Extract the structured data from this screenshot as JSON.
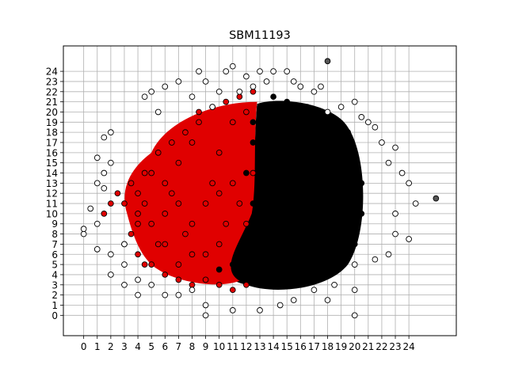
{
  "chart_data": {
    "type": "scatter",
    "title": "SBM11193",
    "xlabel": "",
    "ylabel": "",
    "xlim": [
      -1.5,
      27.5
    ],
    "ylim": [
      -2.0,
      26.5
    ],
    "x_ticks": [
      "0",
      "1",
      "2",
      "3",
      "4",
      "5",
      "6",
      "7",
      "8",
      "9",
      "10",
      "11",
      "12",
      "13",
      "14",
      "15",
      "16",
      "17",
      "18",
      "19",
      "20",
      "21",
      "22",
      "23",
      "24"
    ],
    "y_ticks": [
      "0",
      "1",
      "2",
      "3",
      "4",
      "5",
      "6",
      "7",
      "8",
      "9",
      "10",
      "11",
      "12",
      "13",
      "14",
      "15",
      "16",
      "17",
      "18",
      "19",
      "20",
      "21",
      "22",
      "23",
      "24"
    ],
    "grid": true,
    "legend": "none",
    "colors": {
      "black": "#000000",
      "red": "#e00000",
      "white": "#ffffff",
      "gray": "#555555",
      "marker_edge": "#000000"
    },
    "series": [
      {
        "color": "black",
        "description_only": false,
        "points": [
          [
            14.5,
            15.5
          ],
          [
            15.5,
            14.5
          ],
          [
            16.5,
            13.5
          ],
          [
            17.5,
            12.5
          ],
          [
            15,
            10
          ],
          [
            16,
            9
          ],
          [
            17,
            8
          ],
          [
            18,
            7
          ],
          [
            14,
            6
          ],
          [
            15,
            5
          ],
          [
            16,
            4
          ],
          [
            17,
            3.5
          ],
          [
            13.5,
            13
          ],
          [
            14.5,
            12
          ],
          [
            15.5,
            11
          ],
          [
            16.5,
            10.5
          ],
          [
            17.5,
            9.5
          ],
          [
            18.5,
            8.5
          ],
          [
            19,
            12
          ],
          [
            19.5,
            15
          ],
          [
            18.5,
            16.5
          ],
          [
            17.5,
            17.5
          ],
          [
            16.5,
            18.5
          ],
          [
            15.5,
            19.5
          ],
          [
            14.5,
            20.5
          ],
          [
            13.5,
            19
          ],
          [
            12.5,
            17
          ],
          [
            12,
            14
          ],
          [
            12.5,
            11
          ],
          [
            12,
            8
          ],
          [
            11.5,
            6
          ],
          [
            11,
            5
          ],
          [
            10,
            4.5
          ],
          [
            13,
            4
          ],
          [
            14.5,
            3.5
          ],
          [
            16,
            3
          ],
          [
            17.5,
            4.5
          ],
          [
            19,
            5.5
          ],
          [
            20,
            7
          ],
          [
            20.5,
            10
          ],
          [
            20.5,
            13
          ],
          [
            20,
            16
          ],
          [
            19.5,
            18
          ],
          [
            18,
            19.5
          ],
          [
            16.5,
            20.5
          ],
          [
            15,
            21
          ],
          [
            14,
            21.5
          ],
          [
            13,
            20.5
          ],
          [
            12.5,
            19
          ],
          [
            13,
            15.5
          ],
          [
            14,
            14
          ],
          [
            15,
            13
          ],
          [
            16,
            12
          ],
          [
            17,
            11
          ],
          [
            18,
            10
          ],
          [
            19,
            9
          ],
          [
            18,
            14
          ],
          [
            17,
            15.5
          ],
          [
            16,
            17
          ],
          [
            15,
            18
          ]
        ]
      },
      {
        "color": "red",
        "points": [
          [
            3,
            11
          ],
          [
            3.5,
            13
          ],
          [
            4,
            9
          ],
          [
            4.5,
            11
          ],
          [
            5,
            14
          ],
          [
            5.5,
            7
          ],
          [
            6,
            10
          ],
          [
            6.5,
            12
          ],
          [
            7,
            15
          ],
          [
            7.5,
            8
          ],
          [
            8,
            17
          ],
          [
            8.5,
            19
          ],
          [
            9,
            6
          ],
          [
            9.5,
            13
          ],
          [
            10,
            16
          ],
          [
            10.5,
            9
          ],
          [
            11,
            19
          ],
          [
            11.5,
            11
          ],
          [
            12,
            20
          ],
          [
            12.5,
            14
          ],
          [
            5,
            5
          ],
          [
            6,
            4
          ],
          [
            7,
            3.5
          ],
          [
            8,
            3
          ],
          [
            9,
            3.5
          ],
          [
            10,
            3
          ],
          [
            11,
            2.5
          ],
          [
            12,
            3
          ],
          [
            4,
            12
          ],
          [
            4.5,
            14
          ],
          [
            5.5,
            16
          ],
          [
            6.5,
            17
          ],
          [
            7.5,
            18
          ],
          [
            8.5,
            20
          ],
          [
            9.5,
            20.5
          ],
          [
            10.5,
            21
          ],
          [
            11.5,
            21.5
          ],
          [
            12.5,
            22
          ],
          [
            2,
            11
          ],
          [
            2.5,
            12
          ],
          [
            1.5,
            10
          ],
          [
            3,
            7
          ],
          [
            3.5,
            8
          ],
          [
            4,
            6
          ],
          [
            4.5,
            5
          ],
          [
            6,
            13
          ],
          [
            7,
            11
          ],
          [
            8,
            9
          ],
          [
            9,
            11
          ],
          [
            10,
            12
          ],
          [
            11,
            13
          ],
          [
            12,
            9
          ],
          [
            10,
            7
          ],
          [
            8,
            6
          ],
          [
            7,
            5
          ],
          [
            6,
            7
          ],
          [
            5,
            9
          ],
          [
            4,
            10
          ]
        ]
      },
      {
        "color": "white",
        "points": [
          [
            0,
            8
          ],
          [
            0,
            8.5
          ],
          [
            1,
            6.5
          ],
          [
            1,
            15.5
          ],
          [
            1.5,
            12.5
          ],
          [
            1.5,
            17.5
          ],
          [
            2,
            18
          ],
          [
            2,
            4
          ],
          [
            3,
            3
          ],
          [
            3,
            7
          ],
          [
            4,
            2
          ],
          [
            4.5,
            21.5
          ],
          [
            5,
            22
          ],
          [
            5.5,
            20
          ],
          [
            6,
            22.5
          ],
          [
            7,
            23
          ],
          [
            8,
            21.5
          ],
          [
            8.5,
            24
          ],
          [
            9,
            23
          ],
          [
            9.5,
            20.5
          ],
          [
            10,
            22
          ],
          [
            10.5,
            24
          ],
          [
            11,
            24.5
          ],
          [
            11.5,
            22
          ],
          [
            12,
            23.5
          ],
          [
            12.5,
            22.5
          ],
          [
            13,
            24
          ],
          [
            13.5,
            23
          ],
          [
            14,
            24
          ],
          [
            15,
            24
          ],
          [
            15.5,
            23
          ],
          [
            16,
            22.5
          ],
          [
            17,
            22
          ],
          [
            17.5,
            22.5
          ],
          [
            18,
            20
          ],
          [
            19,
            20.5
          ],
          [
            20,
            21
          ],
          [
            20.5,
            19.5
          ],
          [
            21,
            19
          ],
          [
            21.5,
            18.5
          ],
          [
            22,
            17
          ],
          [
            22.5,
            15
          ],
          [
            23,
            16.5
          ],
          [
            23.5,
            14
          ],
          [
            24,
            13
          ],
          [
            24.5,
            11
          ],
          [
            23,
            10
          ],
          [
            23,
            8
          ],
          [
            24,
            7.5
          ],
          [
            22.5,
            6
          ],
          [
            21.5,
            5.5
          ],
          [
            20,
            5
          ],
          [
            20,
            2.5
          ],
          [
            18.5,
            3
          ],
          [
            17,
            2.5
          ],
          [
            15.5,
            1.5
          ],
          [
            14.5,
            1
          ],
          [
            13,
            0.5
          ],
          [
            11,
            0.5
          ],
          [
            9,
            1
          ],
          [
            8,
            2.5
          ],
          [
            7,
            2
          ],
          [
            6,
            2
          ],
          [
            5,
            3
          ],
          [
            4,
            3.5
          ],
          [
            3,
            5
          ],
          [
            2,
            6
          ],
          [
            1,
            9
          ],
          [
            0.5,
            10.5
          ],
          [
            1,
            13
          ],
          [
            1.5,
            14
          ],
          [
            2,
            15
          ],
          [
            9,
            0
          ],
          [
            20,
            0
          ],
          [
            18,
            1.5
          ]
        ]
      },
      {
        "color": "gray",
        "points": [
          [
            18,
            25
          ],
          [
            26,
            11.5
          ]
        ]
      }
    ]
  }
}
